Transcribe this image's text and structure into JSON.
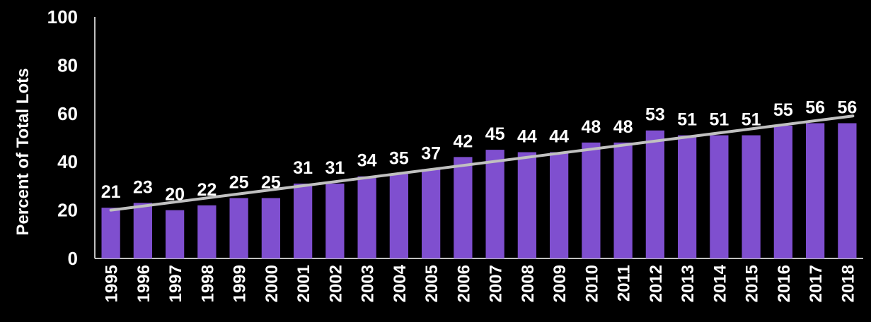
{
  "chart_data": {
    "type": "bar",
    "categories": [
      "1995",
      "1996",
      "1997",
      "1998",
      "1999",
      "2000",
      "2001",
      "2002",
      "2003",
      "2004",
      "2005",
      "2006",
      "2007",
      "2008",
      "2009",
      "2010",
      "2011",
      "2012",
      "2013",
      "2014",
      "2015",
      "2016",
      "2017",
      "2018"
    ],
    "values": [
      21,
      23,
      20,
      22,
      25,
      25,
      31,
      31,
      34,
      35,
      37,
      42,
      45,
      44,
      44,
      48,
      48,
      53,
      51,
      51,
      51,
      55,
      56,
      56
    ],
    "data_labels": [
      "21",
      "23",
      "20",
      "22",
      "25",
      "25",
      "31",
      "31",
      "34",
      "35",
      "37",
      "42",
      "45",
      "44",
      "44",
      "48",
      "48",
      "53",
      "51",
      "51",
      "51",
      "55",
      "56",
      "56"
    ],
    "ylabel": "Percent of Total Lots",
    "xlabel": "",
    "title": "",
    "ylim": [
      0,
      100
    ],
    "yticks": [
      "0",
      "20",
      "40",
      "60",
      "80",
      "100"
    ],
    "trendline": {
      "start": 20,
      "end": 59
    },
    "grid": false,
    "legend": "none",
    "colors": {
      "background": "#000000",
      "bar": "#7f4fcf",
      "trendline": "#c0c0c0",
      "text": "#ffffff"
    }
  }
}
